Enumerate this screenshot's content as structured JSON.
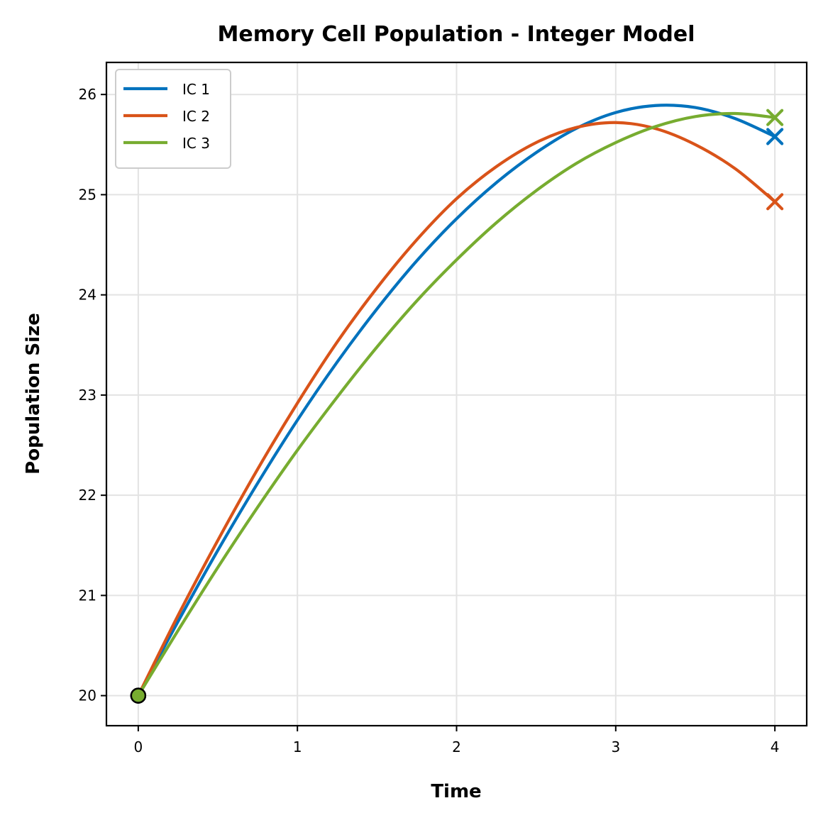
{
  "chart_data": {
    "type": "line",
    "title": "Memory Cell Population - Integer Model",
    "xlabel": "Time",
    "ylabel": "Population Size",
    "xlim": [
      -0.2,
      4.2
    ],
    "ylim": [
      19.7,
      26.32
    ],
    "xticks": [
      0,
      1,
      2,
      3,
      4
    ],
    "yticks": [
      20,
      21,
      22,
      23,
      24,
      25,
      26
    ],
    "grid": true,
    "legend_position": "top-left",
    "start_marker": "circle",
    "end_marker": "x",
    "series": [
      {
        "name": "IC 1",
        "color": "#0072bd",
        "x": [
          0,
          0.25,
          0.5,
          0.75,
          1.0,
          1.25,
          1.5,
          1.75,
          2.0,
          2.25,
          2.5,
          2.75,
          3.0,
          3.25,
          3.5,
          3.75,
          4.0
        ],
        "y": [
          20.0,
          20.74,
          21.45,
          22.12,
          22.75,
          23.33,
          23.86,
          24.34,
          24.76,
          25.12,
          25.42,
          25.66,
          25.82,
          25.89,
          25.87,
          25.76,
          25.58
        ]
      },
      {
        "name": "IC 2",
        "color": "#d95319",
        "x": [
          0,
          0.25,
          0.5,
          0.75,
          1.0,
          1.25,
          1.5,
          1.75,
          2.0,
          2.25,
          2.5,
          2.75,
          3.0,
          3.25,
          3.5,
          3.75,
          4.0
        ],
        "y": [
          20.0,
          20.8,
          21.55,
          22.26,
          22.92,
          23.53,
          24.07,
          24.55,
          24.96,
          25.28,
          25.52,
          25.67,
          25.72,
          25.66,
          25.5,
          25.26,
          24.93
        ]
      },
      {
        "name": "IC 3",
        "color": "#77ac30",
        "x": [
          0,
          0.25,
          0.5,
          0.75,
          1.0,
          1.25,
          1.5,
          1.75,
          2.0,
          2.25,
          2.5,
          2.75,
          3.0,
          3.25,
          3.5,
          3.75,
          4.0
        ],
        "y": [
          20.0,
          20.65,
          21.28,
          21.88,
          22.45,
          22.98,
          23.48,
          23.94,
          24.35,
          24.72,
          25.04,
          25.31,
          25.52,
          25.68,
          25.78,
          25.81,
          25.77
        ]
      }
    ]
  }
}
